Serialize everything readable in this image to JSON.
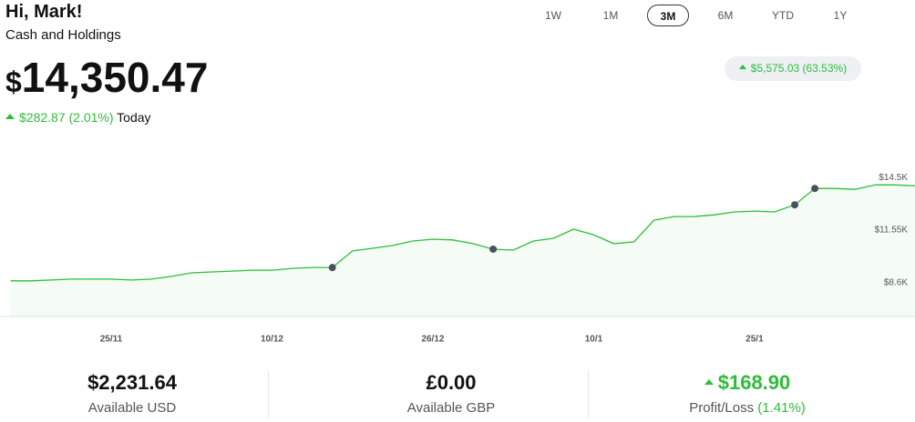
{
  "header": {
    "greeting": "Hi, Mark!",
    "subtitle": "Cash and Holdings",
    "currency": "$",
    "amount": "14,350.47",
    "change_today": "$282.87 (2.01%)",
    "today_label": "Today"
  },
  "ranges": {
    "options": [
      "1W",
      "1M",
      "3M",
      "6M",
      "YTD",
      "1Y"
    ],
    "selected_index": 2
  },
  "period_change": "$5,575.03 (63.53%)",
  "chart_data": {
    "type": "line",
    "color": "#2dbd3a",
    "categories": [
      null,
      null,
      null,
      null,
      null,
      "25/11",
      null,
      null,
      null,
      null,
      null,
      null,
      null,
      "10/12",
      null,
      null,
      null,
      null,
      null,
      null,
      null,
      "26/12",
      null,
      null,
      null,
      null,
      null,
      null,
      null,
      "10/1",
      null,
      null,
      null,
      null,
      null,
      null,
      null,
      "25/1",
      null,
      null,
      null,
      null,
      null,
      null,
      null,
      null
    ],
    "values": [
      8700,
      8700,
      8750,
      8800,
      8800,
      8800,
      8750,
      8800,
      8950,
      9150,
      9200,
      9250,
      9300,
      9300,
      9400,
      9450,
      9450,
      10380,
      10530,
      10690,
      10940,
      11040,
      11000,
      10790,
      10480,
      10430,
      10940,
      11090,
      11600,
      11290,
      10790,
      10890,
      12110,
      12310,
      12310,
      12410,
      12570,
      12620,
      12570,
      12970,
      13890,
      13890,
      13840,
      14090,
      14090,
      14040
    ],
    "markers": [
      16,
      24,
      39,
      40
    ],
    "ylim": [
      6700,
      16300
    ],
    "yticks": [
      {
        "value": 8600,
        "label": "$8.6K"
      },
      {
        "value": 11550,
        "label": "$11.55K"
      },
      {
        "value": 14500,
        "label": "$14.5K"
      }
    ]
  },
  "summary": [
    {
      "value": "$2,231.64",
      "label": "Available USD"
    },
    {
      "value": "£0.00",
      "label": "Available GBP"
    },
    {
      "value": "$168.90",
      "label": "Profit/Loss",
      "pct": "(1.41%)"
    }
  ]
}
